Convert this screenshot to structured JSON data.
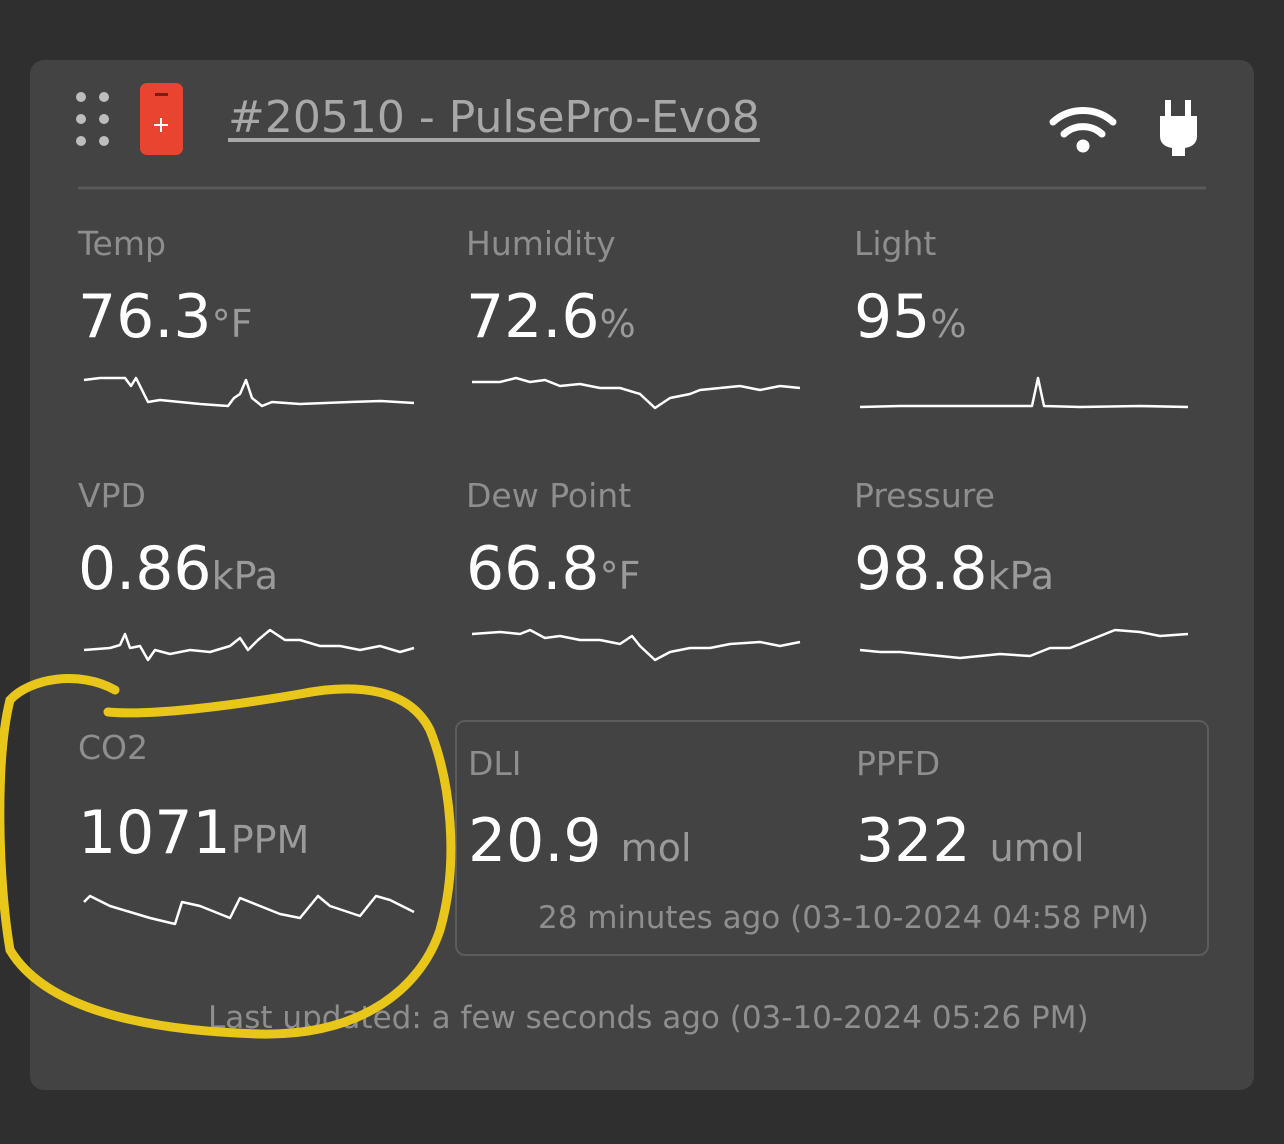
{
  "header": {
    "title": "#20510 - PulsePro-Evo8"
  },
  "metrics": [
    {
      "label": "Temp",
      "value": "76.3",
      "unit": "°F"
    },
    {
      "label": "Humidity",
      "value": "72.6",
      "unit": "%"
    },
    {
      "label": "Light",
      "value": "95",
      "unit": "%"
    },
    {
      "label": "VPD",
      "value": "0.86",
      "unit": "kPa"
    },
    {
      "label": "Dew Point",
      "value": "66.8",
      "unit": "°F"
    },
    {
      "label": "Pressure",
      "value": "98.8",
      "unit": "kPa"
    },
    {
      "label": "CO2",
      "value": "1071",
      "unit": "PPM"
    }
  ],
  "light_panel": {
    "items": [
      {
        "label": "DLI",
        "value": "20.9",
        "unit": "mol"
      },
      {
        "label": "PPFD",
        "value": "322",
        "unit": "umol"
      }
    ],
    "note": "28 minutes ago (03-10-2024 04:58 PM)"
  },
  "footer": {
    "text": "Last updated: a few seconds ago (03-10-2024 05:26 PM)"
  }
}
